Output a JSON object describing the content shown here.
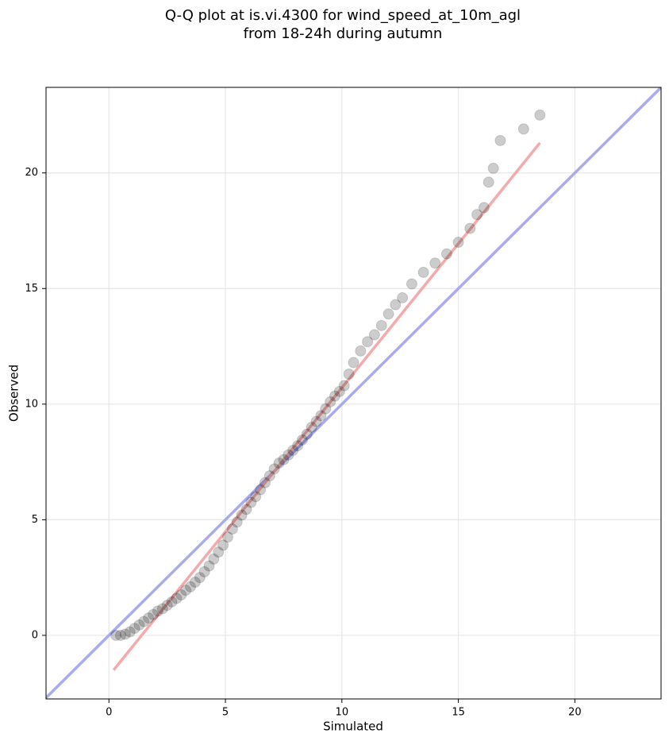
{
  "chart_data": {
    "type": "scatter",
    "title": [
      "Q-Q plot at is.vi.4300 for wind_speed_at_10m_agl",
      "from 18-24h during autumn"
    ],
    "xlabel": "Simulated",
    "ylabel": "Observed",
    "x": [
      0.3,
      0.5,
      0.7,
      0.9,
      1.1,
      1.3,
      1.5,
      1.7,
      1.9,
      2.1,
      2.3,
      2.5,
      2.7,
      2.9,
      3.1,
      3.3,
      3.5,
      3.7,
      3.9,
      4.1,
      4.3,
      4.5,
      4.7,
      4.9,
      5.1,
      5.3,
      5.5,
      5.7,
      5.9,
      6.1,
      6.3,
      6.5,
      6.7,
      6.9,
      7.1,
      7.3,
      7.5,
      7.7,
      7.9,
      8.1,
      8.3,
      8.5,
      8.7,
      8.9,
      9.1,
      9.3,
      9.5,
      9.7,
      9.9,
      10.1,
      10.3,
      10.5,
      10.8,
      11.1,
      11.4,
      11.7,
      12,
      12.3,
      12.6,
      13,
      13.5,
      14,
      14.5,
      15,
      15.5,
      15.8,
      16.1,
      16.3,
      16.5,
      16.8,
      17.8,
      18.5
    ],
    "y": [
      0,
      0,
      0.05,
      0.15,
      0.3,
      0.45,
      0.6,
      0.75,
      0.9,
      1.05,
      1.15,
      1.3,
      1.45,
      1.6,
      1.75,
      1.95,
      2.1,
      2.3,
      2.5,
      2.75,
      3.0,
      3.3,
      3.6,
      3.9,
      4.25,
      4.6,
      4.9,
      5.2,
      5.45,
      5.75,
      6.0,
      6.3,
      6.6,
      6.9,
      7.2,
      7.45,
      7.6,
      7.8,
      8.0,
      8.2,
      8.45,
      8.7,
      9.0,
      9.25,
      9.5,
      9.8,
      10.1,
      10.35,
      10.55,
      10.8,
      11.3,
      11.8,
      12.3,
      12.7,
      13.0,
      13.4,
      13.9,
      14.3,
      14.6,
      15.2,
      15.7,
      16.1,
      16.5,
      17.0,
      17.6,
      18.2,
      18.5,
      19.6,
      20.2,
      21.4,
      21.9,
      22.5
    ],
    "color": "#000000",
    "lines": [
      {
        "x": [
          -2.7,
          23.7
        ],
        "y": [
          -2.7,
          23.7
        ],
        "color": "#aaaaf0"
      },
      {
        "x": [
          0.2,
          18.5
        ],
        "y": [
          -1.5,
          21.3
        ],
        "color": "#f4aaaa"
      }
    ],
    "xlim": [
      -2.7,
      23.7
    ],
    "ylim": [
      -2.75,
      23.7
    ],
    "xticks": [
      0,
      5,
      10,
      15,
      20
    ],
    "yticks": [
      0,
      5,
      10,
      15,
      20
    ],
    "grid": true
  }
}
